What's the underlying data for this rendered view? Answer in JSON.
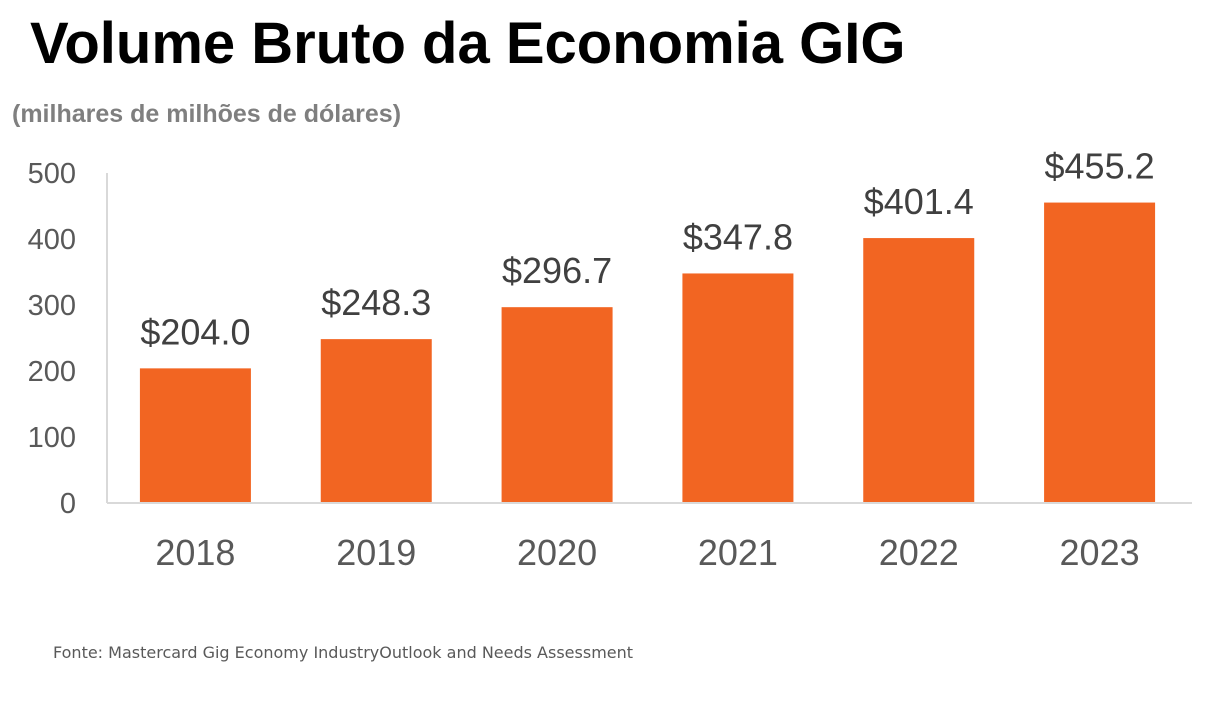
{
  "page": {
    "title": "Volume Bruto da Economia GIG",
    "source": "Fonte: Mastercard Gig Economy IndustryOutlook and Needs Assessment"
  },
  "chart_data": {
    "type": "bar",
    "title": "Volume Bruto da Economia GIG",
    "subtitle": "(milhares de milhões de dólares)",
    "xlabel": "",
    "ylabel": "",
    "categories": [
      "2018",
      "2019",
      "2020",
      "2021",
      "2022",
      "2023"
    ],
    "values": [
      204.0,
      248.3,
      296.7,
      347.8,
      401.4,
      455.2
    ],
    "data_labels": [
      "$204.0",
      "$248.3",
      "$296.7",
      "$347.8",
      "$401.4",
      "$455.2"
    ],
    "y_ticks": [
      "0",
      "100",
      "200",
      "300",
      "400",
      "500"
    ],
    "ylim": [
      0,
      500
    ],
    "grid": false,
    "legend": "none",
    "colors": {
      "bar": "#f26522",
      "axis": "#d9d9d9",
      "tick_text": "#595959",
      "label_text": "#404040"
    }
  }
}
